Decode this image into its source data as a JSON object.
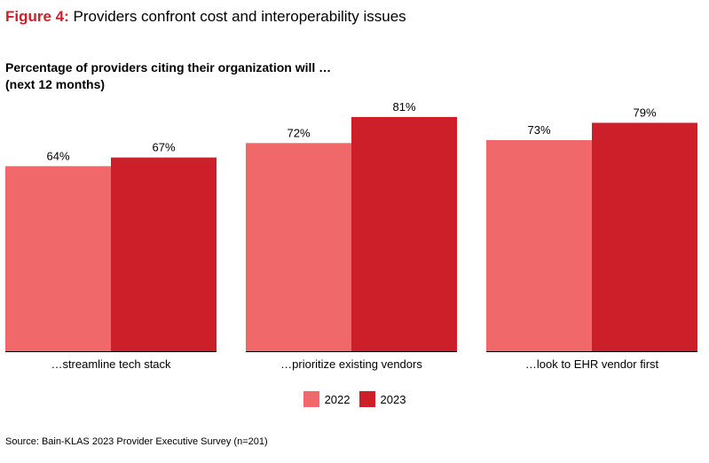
{
  "figure": {
    "label": "Figure 4:",
    "title": "Providers confront cost and interoperability issues"
  },
  "heading": {
    "line1": "Percentage of providers citing their organization will …",
    "line2": "(next 12 months)"
  },
  "colors": {
    "series_2022": "#f0686a",
    "series_2023": "#cc1f2a",
    "axis": "#000000"
  },
  "chart_data": {
    "type": "bar",
    "categories": [
      "…streamline tech stack",
      "…prioritize existing vendors",
      "…look to EHR vendor first"
    ],
    "series": [
      {
        "name": "2022",
        "values": [
          64,
          72,
          73
        ],
        "labels": [
          "64%",
          "72%",
          "73%"
        ]
      },
      {
        "name": "2023",
        "values": [
          67,
          81,
          79
        ],
        "labels": [
          "67%",
          "81%",
          "79%"
        ]
      }
    ],
    "ylim": [
      0,
      100
    ],
    "grid": false,
    "legend": "bottom-center"
  },
  "source": "Source: Bain-KLAS 2023 Provider Executive Survey (n=201)"
}
